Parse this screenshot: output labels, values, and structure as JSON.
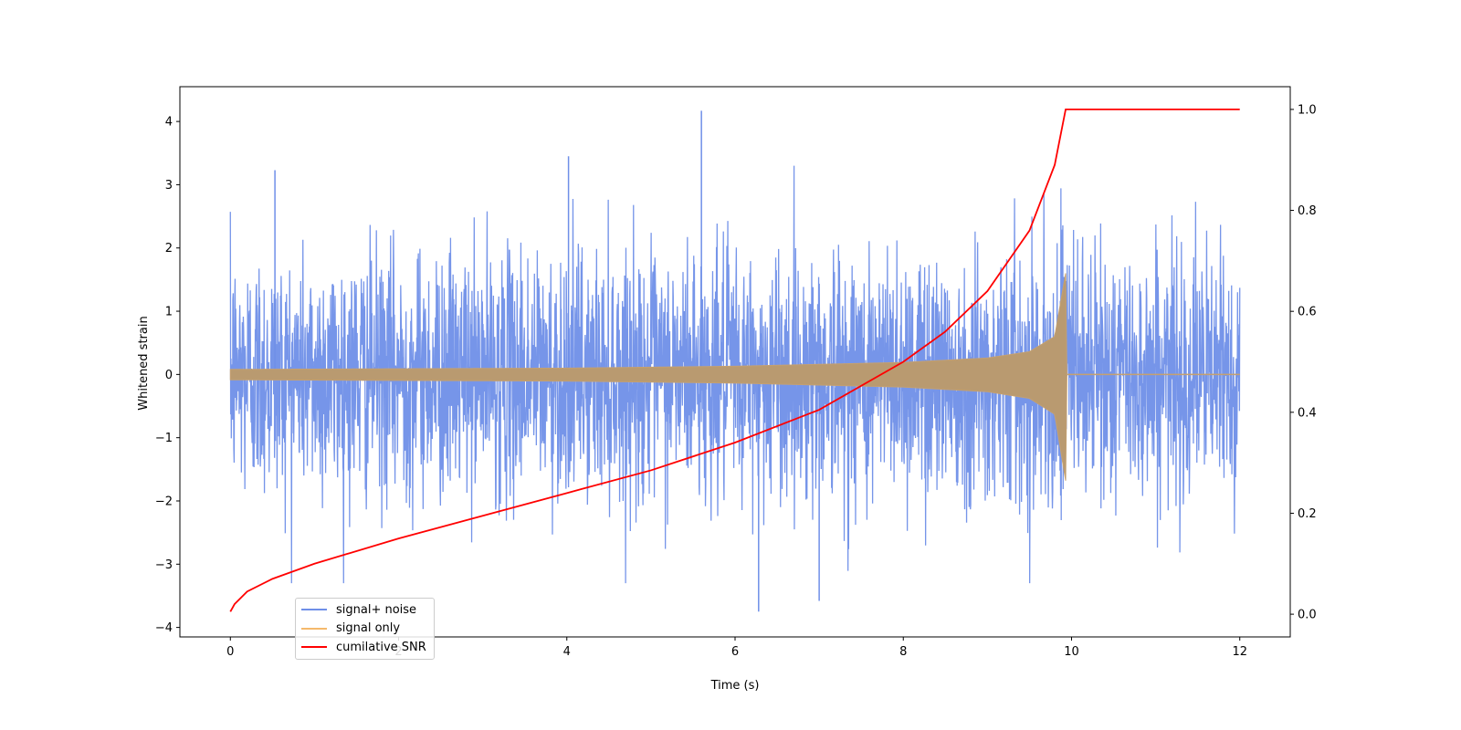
{
  "chart_data": {
    "type": "line",
    "title": "",
    "xlabel": "Time (s)",
    "ylabel": "Whitened strain",
    "y2label": "",
    "xlim": [
      -0.6,
      12.6
    ],
    "ylim": [
      -4.15,
      4.55
    ],
    "y2lim": [
      -0.045,
      1.045
    ],
    "xticks": [
      0,
      2,
      4,
      6,
      8,
      10,
      12
    ],
    "yticks": [
      -4,
      -3,
      -2,
      -1,
      0,
      1,
      2,
      3,
      4
    ],
    "y2ticks": [
      0.0,
      0.2,
      0.4,
      0.6,
      0.8,
      1.0
    ],
    "grid": false,
    "legend_position": "lower-left",
    "series": [
      {
        "name": "signal+ noise",
        "color": "#6f8fe8",
        "axis": "left",
        "description_range": [
          -3.75,
          4.17
        ],
        "peaks": [
          [
            5.6,
            4.17
          ],
          [
            6.28,
            -3.75
          ],
          [
            7.0,
            -3.58
          ],
          [
            4.02,
            3.45
          ],
          [
            0.53,
            3.23
          ]
        ]
      },
      {
        "name": "signal only",
        "color": "#f5b96b",
        "axis": "left",
        "envelope": [
          [
            0.0,
            0.08
          ],
          [
            2.0,
            0.09
          ],
          [
            4.0,
            0.1
          ],
          [
            6.0,
            0.13
          ],
          [
            8.0,
            0.19
          ],
          [
            9.0,
            0.26
          ],
          [
            9.5,
            0.36
          ],
          [
            9.8,
            0.6
          ],
          [
            9.93,
            1.6
          ],
          [
            9.94,
            0.0
          ],
          [
            12.0,
            0.0
          ]
        ]
      },
      {
        "name": "cumilative SNR",
        "color": "#ff0000",
        "axis": "right",
        "points": [
          [
            0.0,
            0.005
          ],
          [
            0.05,
            0.02
          ],
          [
            0.2,
            0.045
          ],
          [
            0.5,
            0.07
          ],
          [
            1.0,
            0.1
          ],
          [
            2.0,
            0.15
          ],
          [
            3.0,
            0.195
          ],
          [
            4.0,
            0.24
          ],
          [
            5.0,
            0.285
          ],
          [
            6.0,
            0.34
          ],
          [
            7.0,
            0.405
          ],
          [
            8.0,
            0.5
          ],
          [
            8.5,
            0.56
          ],
          [
            9.0,
            0.64
          ],
          [
            9.5,
            0.76
          ],
          [
            9.8,
            0.89
          ],
          [
            9.93,
            1.0
          ],
          [
            12.0,
            1.0
          ]
        ]
      }
    ]
  }
}
